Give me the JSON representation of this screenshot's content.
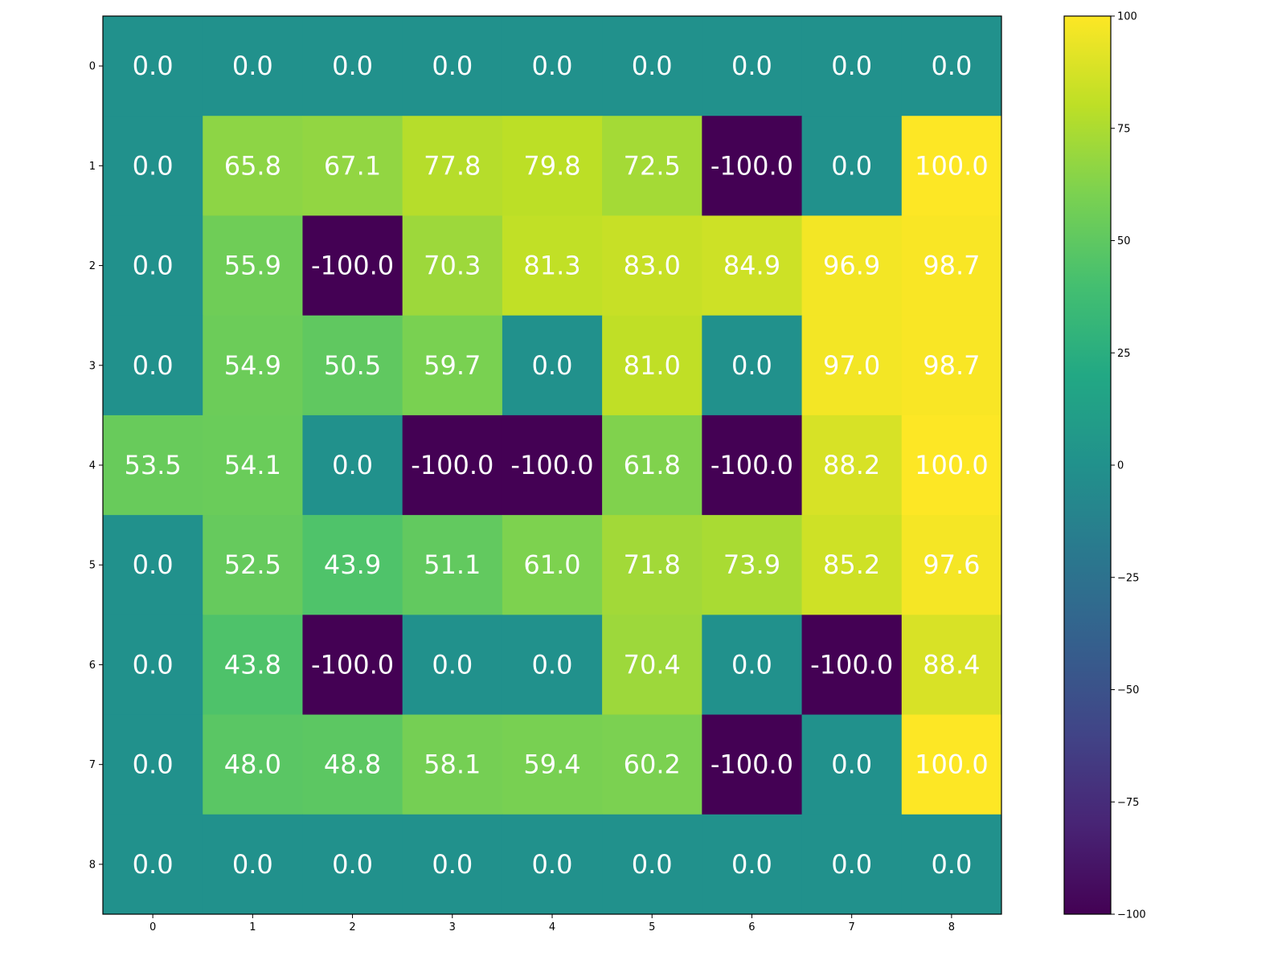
{
  "chart_data": {
    "type": "heatmap",
    "rows": [
      "0",
      "1",
      "2",
      "3",
      "4",
      "5",
      "6",
      "7",
      "8"
    ],
    "columns": [
      "0",
      "1",
      "2",
      "3",
      "4",
      "5",
      "6",
      "7",
      "8"
    ],
    "values": [
      [
        0.0,
        0.0,
        0.0,
        0.0,
        0.0,
        0.0,
        0.0,
        0.0,
        0.0
      ],
      [
        0.0,
        65.8,
        67.1,
        77.8,
        79.8,
        72.5,
        -100.0,
        0.0,
        100.0
      ],
      [
        0.0,
        55.9,
        -100.0,
        70.3,
        81.3,
        83.0,
        84.9,
        96.9,
        98.7
      ],
      [
        0.0,
        54.9,
        50.5,
        59.7,
        0.0,
        81.0,
        0.0,
        97.0,
        98.7
      ],
      [
        53.5,
        54.1,
        0.0,
        -100.0,
        -100.0,
        61.8,
        -100.0,
        88.2,
        100.0
      ],
      [
        0.0,
        52.5,
        43.9,
        51.1,
        61.0,
        71.8,
        73.9,
        85.2,
        97.6
      ],
      [
        0.0,
        43.8,
        -100.0,
        0.0,
        0.0,
        70.4,
        0.0,
        -100.0,
        88.4
      ],
      [
        0.0,
        48.0,
        48.8,
        58.1,
        59.4,
        60.2,
        -100.0,
        0.0,
        100.0
      ],
      [
        0.0,
        0.0,
        0.0,
        0.0,
        0.0,
        0.0,
        0.0,
        0.0,
        0.0
      ]
    ],
    "value_format": "1 decimal",
    "colormap": "viridis",
    "vmin": -100,
    "vmax": 100,
    "colorbar_ticks": [
      100,
      75,
      50,
      25,
      0,
      -25,
      -50,
      -75,
      -100
    ],
    "colorbar_tick_labels": [
      "100",
      "75",
      "50",
      "25",
      "0",
      "−25",
      "−50",
      "−75",
      "−100"
    ],
    "x_tick_position": "bottom",
    "y_tick_position": "left",
    "grid": false,
    "title": "",
    "xlabel": "",
    "ylabel": ""
  }
}
